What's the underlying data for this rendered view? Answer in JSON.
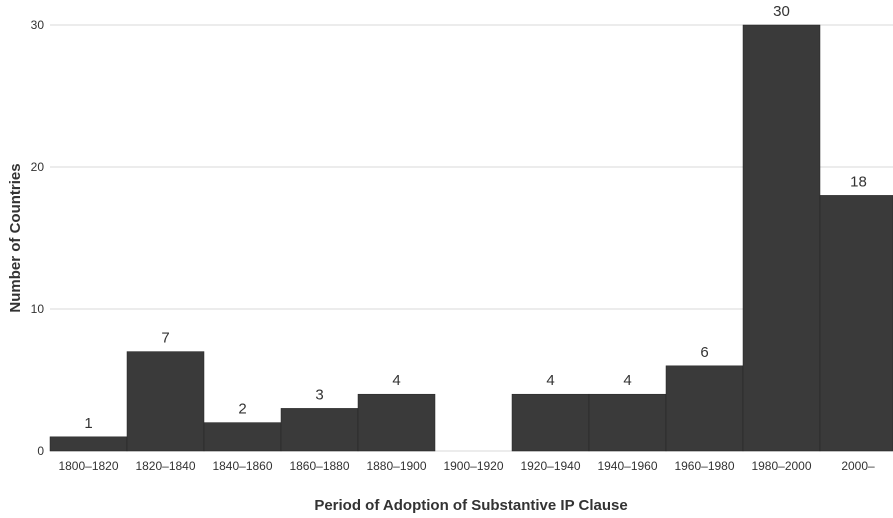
{
  "chart_data": {
    "type": "bar",
    "title": "",
    "xlabel": "Period of Adoption of Substantive IP Clause",
    "ylabel": "Number of Countries",
    "categories": [
      "1800–1820",
      "1820–1840",
      "1840–1860",
      "1860–1880",
      "1880–1900",
      "1900–1920",
      "1920–1940",
      "1940–1960",
      "1960–1980",
      "1980–2000",
      "2000–"
    ],
    "values": [
      1,
      7,
      2,
      3,
      4,
      0,
      4,
      4,
      6,
      30,
      18
    ],
    "data_labels": [
      "1",
      "7",
      "2",
      "3",
      "4",
      "",
      "4",
      "4",
      "6",
      "30",
      "18"
    ],
    "ylim": [
      0,
      30
    ],
    "yticks": [
      0,
      10,
      20,
      30
    ],
    "ytick_labels": [
      "0",
      "10",
      "20",
      "30"
    ],
    "grid": true,
    "legend": "none",
    "bar_color": "#3a3a3a",
    "grid_color": "#d9d9d9"
  }
}
